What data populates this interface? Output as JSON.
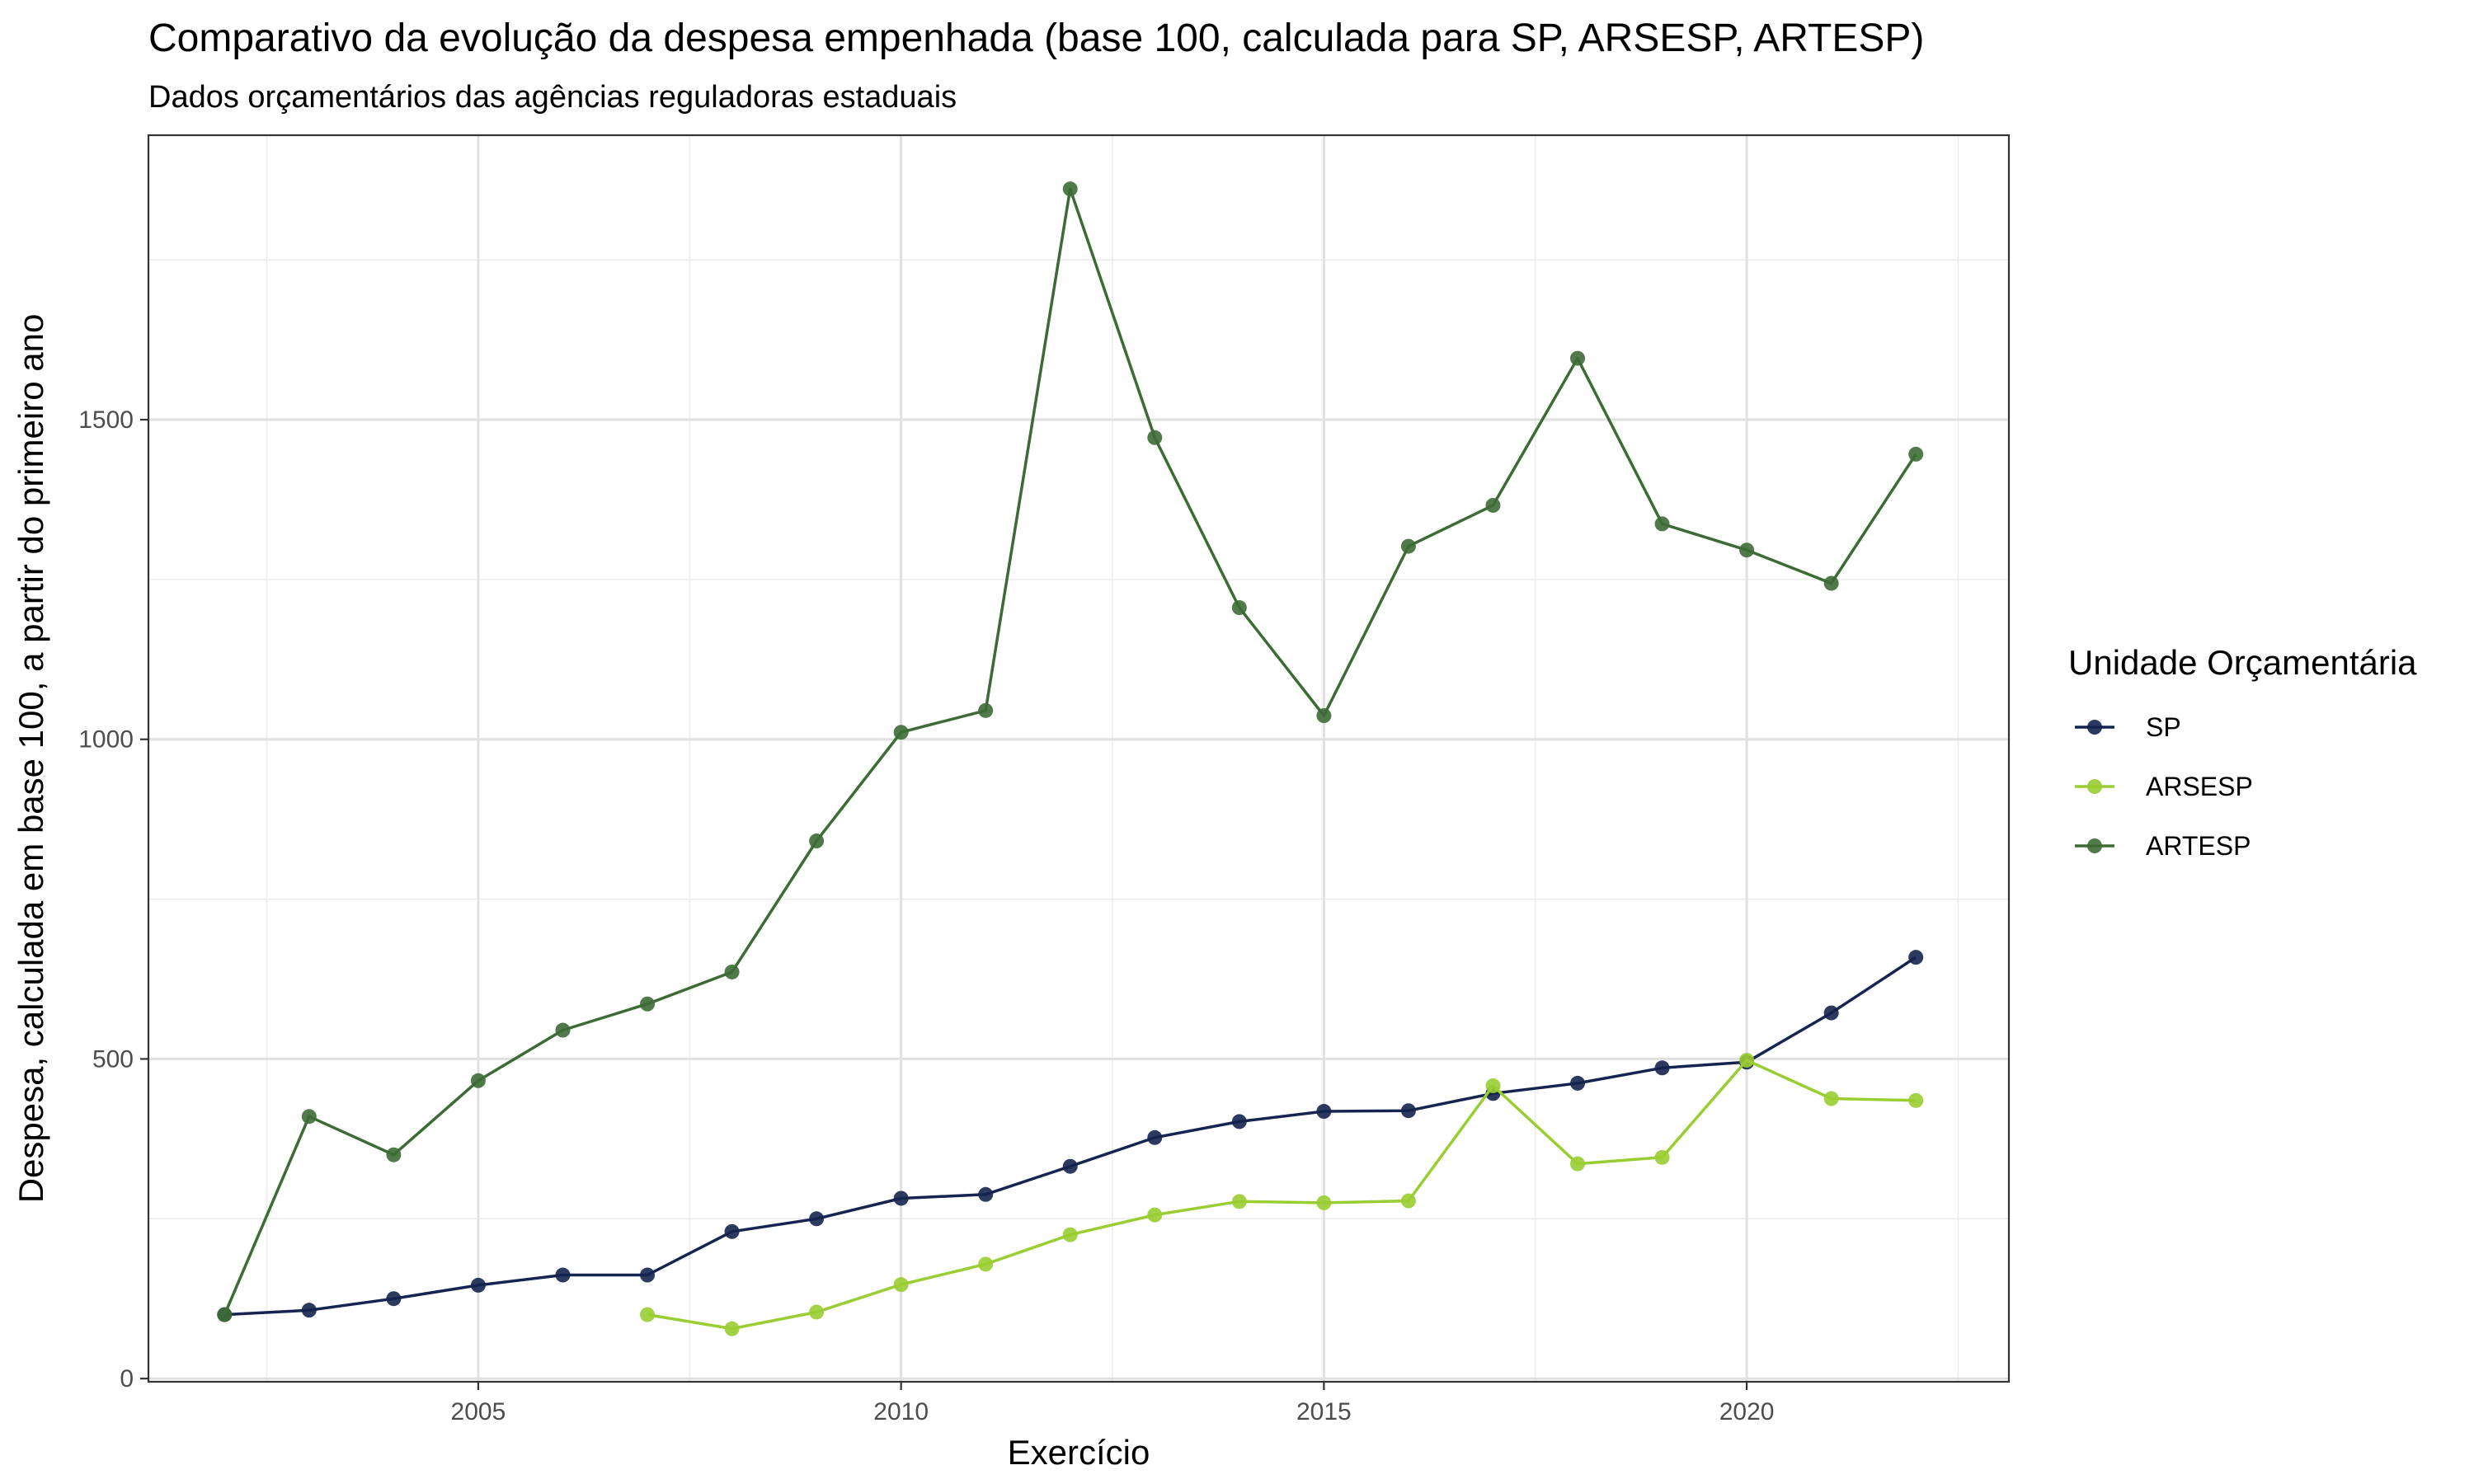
{
  "chart_data": {
    "type": "line",
    "title": "Comparativo da evolução da despesa empenhada (base 100, calculada para SP, ARSESP, ARTESP)",
    "subtitle": "Dados orçamentários das agências reguladoras estaduais",
    "xlabel": "Exercício",
    "ylabel": "Despesa, calculada em base 100, a partir do primeiro ano",
    "xlim": [
      2001.1,
      2023.1
    ],
    "ylim": [
      -5,
      1945
    ],
    "x_ticks": [
      2005,
      2010,
      2015,
      2020
    ],
    "y_ticks": [
      0,
      500,
      1000,
      1500
    ],
    "grid": true,
    "legend": {
      "title": "Unidade Orçamentária",
      "position": "right"
    },
    "series": [
      {
        "name": "SP",
        "color": "#15254f",
        "x": [
          2002,
          2003,
          2004,
          2005,
          2006,
          2007,
          2008,
          2009,
          2010,
          2011,
          2012,
          2013,
          2014,
          2015,
          2016,
          2017,
          2018,
          2019,
          2020,
          2021,
          2022
        ],
        "values": [
          100,
          107,
          125,
          146,
          162,
          162,
          230,
          250,
          282,
          288,
          332,
          377,
          402,
          418,
          419,
          446,
          462,
          486,
          495,
          572,
          659
        ]
      },
      {
        "name": "ARSESP",
        "color": "#9acd32",
        "x": [
          2007,
          2008,
          2009,
          2010,
          2011,
          2012,
          2013,
          2014,
          2015,
          2016,
          2017,
          2018,
          2019,
          2020,
          2021,
          2022
        ],
        "values": [
          100,
          78,
          104,
          147,
          179,
          225,
          256,
          277,
          275,
          278,
          458,
          336,
          346,
          498,
          438,
          435
        ]
      },
      {
        "name": "ARTESP",
        "color": "#3d6b35",
        "x": [
          2002,
          2003,
          2004,
          2005,
          2006,
          2007,
          2008,
          2009,
          2010,
          2011,
          2012,
          2013,
          2014,
          2015,
          2016,
          2017,
          2018,
          2019,
          2020,
          2021,
          2022
        ],
        "values": [
          100,
          410,
          350,
          466,
          545,
          586,
          636,
          841,
          1011,
          1045,
          1861,
          1472,
          1206,
          1037,
          1302,
          1366,
          1596,
          1337,
          1296,
          1244,
          1446
        ]
      }
    ]
  }
}
